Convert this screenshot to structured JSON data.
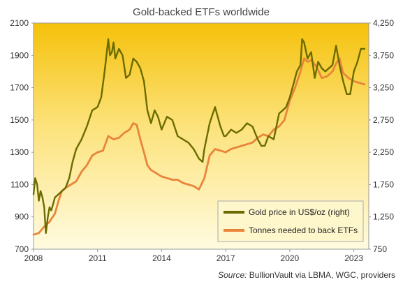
{
  "chart_data": {
    "type": "line",
    "title": "Gold-backed ETFs worldwide",
    "source_label": "Source:",
    "source_text": " BullionVault via LBMA, WGC, providers",
    "x_ticks": [
      "2008",
      "2011",
      "2014",
      "2017",
      "2020",
      "2023"
    ],
    "xlim": [
      2008,
      2023.7
    ],
    "y_left": {
      "ticks": [
        "2100",
        "1900",
        "1700",
        "1500",
        "1300",
        "1100",
        "900",
        "700"
      ],
      "range": [
        700,
        2100
      ]
    },
    "y_right": {
      "ticks": [
        "4,250",
        "3,750",
        "3,250",
        "2,750",
        "2,250",
        "1,750",
        "1,250",
        "750"
      ],
      "range": [
        750,
        4250
      ]
    },
    "grid": false,
    "legend_position": "bottom-right",
    "series": [
      {
        "name": "Gold price in US$/oz (right)",
        "axis": "right",
        "color": "#6b6b00",
        "x": [
          2008.0,
          2008.08,
          2008.17,
          2008.25,
          2008.33,
          2008.42,
          2008.5,
          2008.58,
          2008.67,
          2008.75,
          2008.83,
          2008.92,
          2009.0,
          2009.17,
          2009.33,
          2009.5,
          2009.67,
          2009.83,
          2010.0,
          2010.25,
          2010.5,
          2010.75,
          2011.0,
          2011.17,
          2011.33,
          2011.5,
          2011.58,
          2011.67,
          2011.75,
          2011.83,
          2012.0,
          2012.17,
          2012.33,
          2012.5,
          2012.67,
          2012.83,
          2013.0,
          2013.17,
          2013.33,
          2013.5,
          2013.67,
          2013.83,
          2014.0,
          2014.25,
          2014.5,
          2014.75,
          2015.0,
          2015.25,
          2015.5,
          2015.75,
          2015.92,
          2016.0,
          2016.25,
          2016.5,
          2016.75,
          2016.92,
          2017.0,
          2017.25,
          2017.5,
          2017.75,
          2018.0,
          2018.25,
          2018.5,
          2018.67,
          2018.83,
          2019.0,
          2019.25,
          2019.5,
          2019.67,
          2019.83,
          2020.0,
          2020.17,
          2020.33,
          2020.5,
          2020.58,
          2020.67,
          2020.83,
          2021.0,
          2021.17,
          2021.33,
          2021.5,
          2021.67,
          2021.83,
          2022.0,
          2022.17,
          2022.33,
          2022.5,
          2022.67,
          2022.83,
          2023.0,
          2023.17,
          2023.33,
          2023.5
        ],
        "values": [
          1600,
          1850,
          1750,
          1500,
          1650,
          1550,
          1400,
          1000,
          1250,
          1400,
          1350,
          1450,
          1550,
          1600,
          1650,
          1700,
          1850,
          2100,
          2300,
          2450,
          2650,
          2900,
          2950,
          3100,
          3500,
          4000,
          3750,
          3800,
          3950,
          3700,
          3850,
          3750,
          3400,
          3450,
          3700,
          3650,
          3550,
          3350,
          2900,
          2700,
          2900,
          2800,
          2600,
          2800,
          2750,
          2500,
          2450,
          2400,
          2300,
          2150,
          2100,
          2300,
          2700,
          2950,
          2650,
          2500,
          2500,
          2600,
          2550,
          2600,
          2700,
          2650,
          2450,
          2350,
          2350,
          2500,
          2450,
          2850,
          2900,
          2950,
          3100,
          3300,
          3500,
          3600,
          4000,
          3950,
          3700,
          3800,
          3400,
          3650,
          3550,
          3500,
          3550,
          3600,
          3900,
          3600,
          3350,
          3150,
          3150,
          3500,
          3650,
          3850,
          3850
        ]
      },
      {
        "name": "Tonnes needed to back ETFs",
        "axis": "left",
        "color": "#e8853a",
        "x": [
          2008.0,
          2008.25,
          2008.5,
          2008.75,
          2009.0,
          2009.17,
          2009.33,
          2009.5,
          2009.75,
          2010.0,
          2010.25,
          2010.5,
          2010.75,
          2011.0,
          2011.25,
          2011.5,
          2011.75,
          2012.0,
          2012.25,
          2012.5,
          2012.67,
          2012.83,
          2013.0,
          2013.17,
          2013.33,
          2013.5,
          2013.75,
          2014.0,
          2014.25,
          2014.5,
          2014.75,
          2015.0,
          2015.25,
          2015.5,
          2015.75,
          2016.0,
          2016.25,
          2016.5,
          2016.75,
          2017.0,
          2017.25,
          2017.5,
          2017.75,
          2018.0,
          2018.25,
          2018.5,
          2018.75,
          2019.0,
          2019.25,
          2019.5,
          2019.75,
          2020.0,
          2020.25,
          2020.5,
          2020.67,
          2020.83,
          2021.0,
          2021.25,
          2021.5,
          2021.75,
          2022.0,
          2022.17,
          2022.33,
          2022.5,
          2022.75,
          2023.0,
          2023.25,
          2023.5
        ],
        "values": [
          790,
          800,
          840,
          870,
          920,
          1000,
          1060,
          1080,
          1100,
          1120,
          1180,
          1220,
          1280,
          1300,
          1310,
          1400,
          1380,
          1390,
          1420,
          1440,
          1480,
          1470,
          1380,
          1300,
          1220,
          1190,
          1170,
          1150,
          1140,
          1130,
          1130,
          1110,
          1100,
          1090,
          1070,
          1140,
          1280,
          1320,
          1310,
          1300,
          1320,
          1330,
          1340,
          1350,
          1360,
          1390,
          1410,
          1400,
          1440,
          1460,
          1500,
          1620,
          1700,
          1800,
          1880,
          1860,
          1870,
          1830,
          1760,
          1770,
          1800,
          1850,
          1880,
          1790,
          1760,
          1740,
          1730,
          1720
        ]
      }
    ]
  }
}
